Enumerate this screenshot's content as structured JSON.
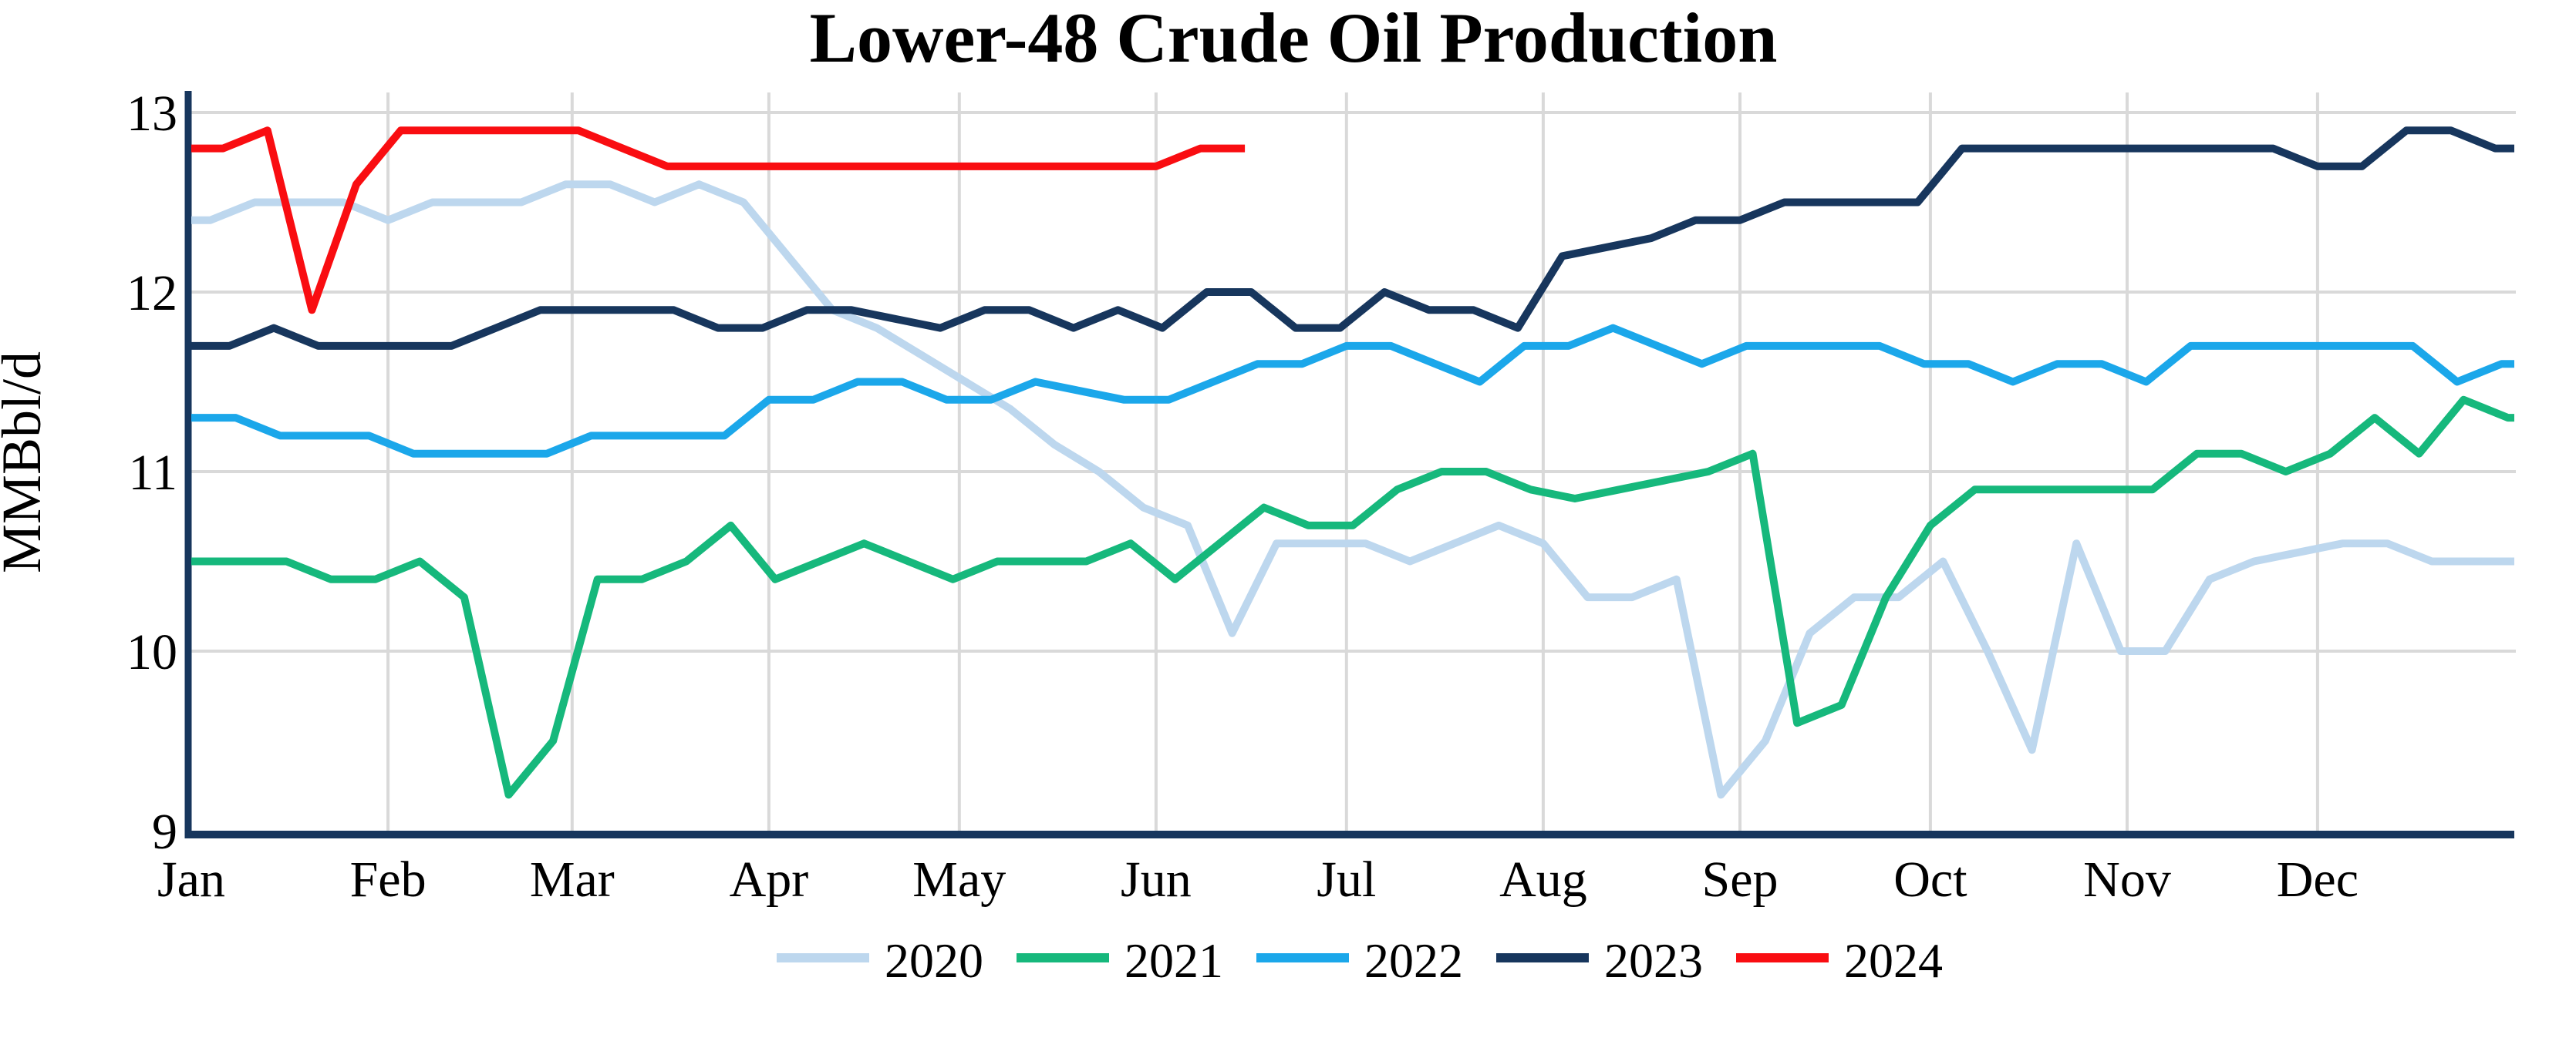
{
  "title": "Lower-48 Crude Oil Production",
  "chart_data": {
    "type": "line",
    "title": "Lower-48 Crude Oil Production",
    "ylabel": "MMBbl/d",
    "xlabel": "",
    "ylim": [
      9,
      13
    ],
    "yticks": [
      9,
      10,
      11,
      12,
      13
    ],
    "months": [
      "Jan",
      "Feb",
      "Mar",
      "Apr",
      "May",
      "Jun",
      "Jul",
      "Aug",
      "Sep",
      "Oct",
      "Nov",
      "Dec"
    ],
    "grid": true,
    "legend_position": "bottom-center",
    "x_encoding": "weekly data points per year, day-of-year mapped linearly Jan 1 - Dec 31 across the plot width",
    "axis_color": "#17365D",
    "gridline_color": "#D9D9D9",
    "series": [
      {
        "name": "2020",
        "color": "#BDD7EE",
        "first_day": 3,
        "interval_days": 7,
        "extend_to_year_end": true,
        "values": [
          12.4,
          12.5,
          12.5,
          12.5,
          12.4,
          12.5,
          12.5,
          12.5,
          12.6,
          12.6,
          12.5,
          12.6,
          12.5,
          12.2,
          11.9,
          11.8,
          11.65,
          11.5,
          11.35,
          11.15,
          11.0,
          10.8,
          10.7,
          10.1,
          10.6,
          10.6,
          10.6,
          10.5,
          10.6,
          10.7,
          10.6,
          10.3,
          10.3,
          10.4,
          9.2,
          9.5,
          10.1,
          10.3,
          10.3,
          10.5,
          10.0,
          9.45,
          10.6,
          10.0,
          10.0,
          10.4,
          10.5,
          10.55,
          10.6,
          10.6,
          10.5,
          10.5
        ]
      },
      {
        "name": "2021",
        "color": "#16B87C",
        "first_day": 1,
        "interval_days": 7,
        "extend_to_year_end": true,
        "values": [
          10.5,
          10.5,
          10.5,
          10.4,
          10.4,
          10.5,
          10.3,
          9.2,
          9.5,
          10.4,
          10.4,
          10.5,
          10.7,
          10.4,
          10.5,
          10.6,
          10.5,
          10.4,
          10.5,
          10.5,
          10.5,
          10.6,
          10.4,
          10.6,
          10.8,
          10.7,
          10.7,
          10.9,
          11.0,
          11.0,
          10.9,
          10.85,
          10.9,
          10.95,
          11.0,
          11.1,
          9.6,
          9.7,
          10.3,
          10.7,
          10.9,
          10.9,
          10.9,
          10.9,
          10.9,
          11.1,
          11.1,
          11.0,
          11.1,
          11.3,
          11.1,
          11.4,
          11.3
        ]
      },
      {
        "name": "2022",
        "color": "#1BA7EA",
        "first_day": 7,
        "interval_days": 7,
        "extend_to_year_end": true,
        "values": [
          11.3,
          11.2,
          11.2,
          11.2,
          11.1,
          11.1,
          11.1,
          11.1,
          11.2,
          11.2,
          11.2,
          11.2,
          11.4,
          11.4,
          11.5,
          11.5,
          11.4,
          11.4,
          11.5,
          11.45,
          11.4,
          11.4,
          11.5,
          11.6,
          11.6,
          11.7,
          11.7,
          11.6,
          11.5,
          11.7,
          11.7,
          11.8,
          11.7,
          11.6,
          11.7,
          11.7,
          11.7,
          11.7,
          11.6,
          11.6,
          11.5,
          11.6,
          11.6,
          11.5,
          11.7,
          11.7,
          11.7,
          11.7,
          11.7,
          11.7,
          11.5,
          11.6
        ]
      },
      {
        "name": "2023",
        "color": "#17365D",
        "first_day": 6,
        "interval_days": 7,
        "extend_to_year_end": true,
        "values": [
          11.7,
          11.8,
          11.7,
          11.7,
          11.7,
          11.7,
          11.8,
          11.9,
          11.9,
          11.9,
          11.9,
          11.8,
          11.8,
          11.9,
          11.9,
          11.85,
          11.8,
          11.9,
          11.9,
          11.8,
          11.9,
          11.8,
          12.0,
          12.0,
          11.8,
          11.8,
          12.0,
          11.9,
          11.9,
          11.8,
          12.2,
          12.25,
          12.3,
          12.4,
          12.4,
          12.5,
          12.5,
          12.5,
          12.5,
          12.8,
          12.8,
          12.8,
          12.8,
          12.8,
          12.8,
          12.8,
          12.8,
          12.7,
          12.7,
          12.9,
          12.9,
          12.8
        ]
      },
      {
        "name": "2024",
        "color": "#F90D11",
        "first_day": 5,
        "interval_days": 7,
        "extend_to_year_end": false,
        "values": [
          12.8,
          12.9,
          11.9,
          12.6,
          12.9,
          12.9,
          12.9,
          12.9,
          12.9,
          12.8,
          12.7,
          12.7,
          12.7,
          12.7,
          12.7,
          12.7,
          12.7,
          12.7,
          12.7,
          12.7,
          12.7,
          12.7,
          12.8,
          12.8
        ]
      }
    ]
  }
}
